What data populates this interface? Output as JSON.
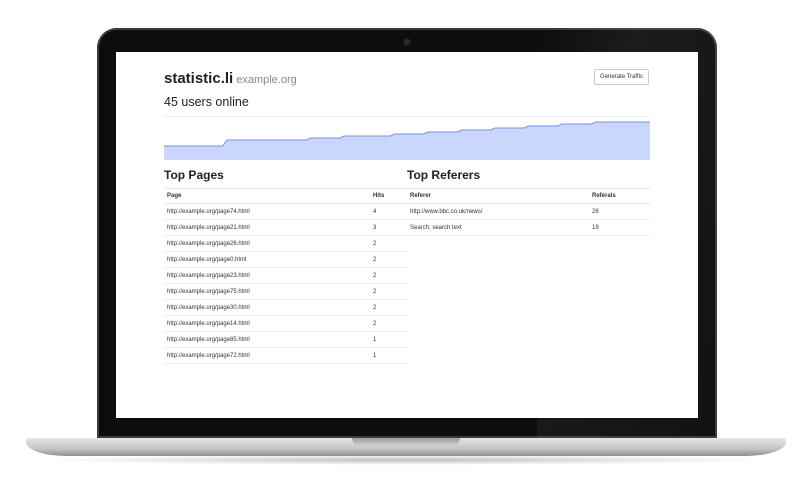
{
  "app": {
    "title": "statistic.li",
    "domain": "example.org",
    "generate_label": "Generate Traffic",
    "online_text": "45 users online"
  },
  "chart_data": {
    "type": "area",
    "title": "",
    "x": [
      0,
      1,
      2,
      3,
      4,
      5,
      6,
      7,
      8,
      9,
      10,
      11,
      12,
      13,
      14,
      15,
      16,
      17,
      18,
      19,
      20,
      21,
      22,
      23,
      24,
      25,
      26,
      27,
      28,
      29
    ],
    "values": [
      7,
      7,
      7,
      7,
      10,
      10,
      10,
      10,
      10,
      11,
      11,
      12,
      12,
      12,
      13,
      13,
      14,
      14,
      15,
      15,
      16,
      16,
      17,
      17,
      18,
      18,
      19,
      19,
      19,
      19
    ],
    "ylim": [
      0,
      20
    ],
    "grid": false,
    "color": "#c8d7fb",
    "line_color": "#7b8fe8"
  },
  "top_pages": {
    "title": "Top Pages",
    "headers": [
      "Page",
      "Hits"
    ],
    "rows": [
      [
        "http://example.org/page74.html",
        "4"
      ],
      [
        "http://example.org/page21.html",
        "3"
      ],
      [
        "http://example.org/page26.html",
        "2"
      ],
      [
        "http://example.org/page0.html",
        "2"
      ],
      [
        "http://example.org/page23.html",
        "2"
      ],
      [
        "http://example.org/page75.html",
        "2"
      ],
      [
        "http://example.org/page30.html",
        "2"
      ],
      [
        "http://example.org/page14.html",
        "2"
      ],
      [
        "http://example.org/page85.html",
        "1"
      ],
      [
        "http://example.org/page72.html",
        "1"
      ]
    ]
  },
  "top_referers": {
    "title": "Top Referers",
    "headers": [
      "Referer",
      "Referals"
    ],
    "rows": [
      [
        "http://www.bbc.co.uk/news/",
        "26"
      ],
      [
        "Search: search text",
        "19"
      ]
    ]
  }
}
